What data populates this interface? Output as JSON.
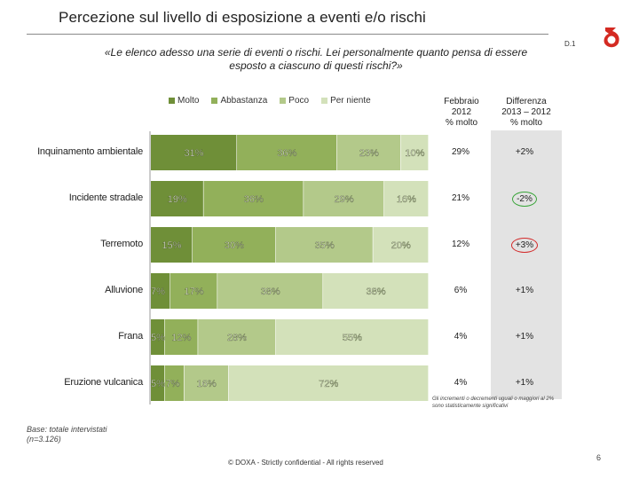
{
  "title": "Percezione sul livello di esposizione a eventi e/o rischi",
  "slide_code": "D.1",
  "question": "«Le elenco adesso una serie di eventi o rischi. Lei personalmente quanto pensa di essere esposto a ciascuno di questi rischi?»",
  "columns": {
    "col1": [
      "Febbraio",
      "2012",
      "% molto"
    ],
    "col2": [
      "Differenza",
      "2013 – 2012",
      "% molto"
    ]
  },
  "colors": {
    "molto": "#6f8f38",
    "abbastanza": "#92b05a",
    "poco": "#b3c98a",
    "per_niente": "#d3e1ba",
    "circle_green": "#3aa53a",
    "circle_red": "#d32b2b"
  },
  "chart_data": {
    "type": "bar",
    "orientation": "horizontal-stacked-100",
    "title": "Percezione sul livello di esposizione a eventi e/o rischi",
    "categories": [
      "Inquinamento ambientale",
      "Incidente stradale",
      "Terremoto",
      "Alluvione",
      "Frana",
      "Eruzione vulcanica"
    ],
    "series": [
      {
        "name": "Molto",
        "values": [
          31,
          19,
          15,
          7,
          5,
          5
        ]
      },
      {
        "name": "Abbastanza",
        "values": [
          36,
          36,
          30,
          17,
          12,
          7
        ]
      },
      {
        "name": "Poco",
        "values": [
          23,
          29,
          35,
          38,
          28,
          16
        ]
      },
      {
        "name": "Per niente",
        "values": [
          10,
          16,
          20,
          38,
          55,
          72
        ]
      }
    ],
    "value_labels": [
      [
        "31%",
        "36%",
        "23%",
        "10%"
      ],
      [
        "19%",
        "36%",
        "29%",
        "16%"
      ],
      [
        "15%",
        "30%",
        "35%",
        "20%"
      ],
      [
        "7%",
        "17%",
        "38%",
        "38%"
      ],
      [
        "5%",
        "12%",
        "28%",
        "55%"
      ],
      [
        "5%",
        "7%",
        "16%",
        "72%"
      ]
    ],
    "febbraio_2012_molto": [
      "29%",
      "21%",
      "12%",
      "6%",
      "4%",
      "4%"
    ],
    "differenza_2013_2012": [
      "+2%",
      "-2%",
      "+3%",
      "+1%",
      "+1%",
      "+1%"
    ],
    "differenza_highlight": [
      "none",
      "green",
      "red",
      "none",
      "none",
      "none"
    ],
    "legend": [
      "Molto",
      "Abbastanza",
      "Poco",
      "Per niente"
    ],
    "legend_position": "top"
  },
  "note": "Gli incrementi o decrementi uguali o maggiori al 2% sono statisticamente significativi",
  "base": [
    "Base: totale intervistati",
    "(n=3.126)"
  ],
  "footer": "© DOXA - Strictly confidential - All rights reserved",
  "page_number": "6"
}
